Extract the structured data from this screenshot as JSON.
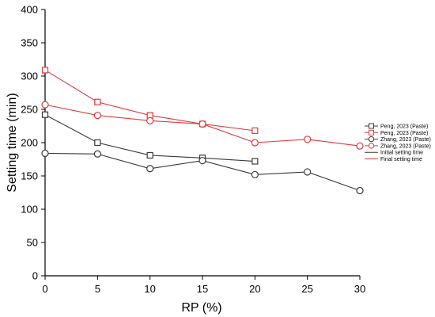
{
  "chart_data": {
    "type": "line",
    "xlabel": "RP (%)",
    "ylabel": "Setting time (min)",
    "xlim": [
      0,
      30
    ],
    "ylim": [
      0,
      400
    ],
    "xticks": [
      0,
      5,
      10,
      15,
      20,
      25,
      30
    ],
    "yticks": [
      0,
      50,
      100,
      150,
      200,
      250,
      300,
      350,
      400
    ],
    "grid": false,
    "legend_position": "right",
    "series": [
      {
        "name": "Peng, 2023 (Paste)",
        "marker": "square",
        "color": "#3a3a3a",
        "setting": "Initial setting time",
        "x": [
          0,
          5,
          10,
          15,
          20
        ],
        "y": [
          242,
          200,
          181,
          177,
          172
        ]
      },
      {
        "name": "Peng, 2023 (Paste)",
        "marker": "square",
        "color": "#e23a3a",
        "setting": "Final setting time",
        "x": [
          0,
          5,
          10,
          15,
          20
        ],
        "y": [
          309,
          261,
          241,
          228,
          218
        ]
      },
      {
        "name": "Zhang, 2023 (Paste)",
        "marker": "circle",
        "color": "#3a3a3a",
        "setting": "Initial setting time",
        "x": [
          0,
          5,
          10,
          15,
          20,
          25,
          30
        ],
        "y": [
          184,
          183,
          161,
          173,
          152,
          156,
          128
        ]
      },
      {
        "name": "Zhang, 2023 (Paste)",
        "marker": "circle",
        "color": "#e23a3a",
        "setting": "Final setting time",
        "x": [
          0,
          5,
          10,
          15,
          20,
          25,
          30
        ],
        "y": [
          257,
          241,
          233,
          228,
          200,
          205,
          195
        ]
      }
    ],
    "legend_lines": [
      {
        "label": "Initial setting time",
        "color": "#3a3a3a"
      },
      {
        "label": "Final setting time",
        "color": "#e23a3a"
      }
    ]
  }
}
